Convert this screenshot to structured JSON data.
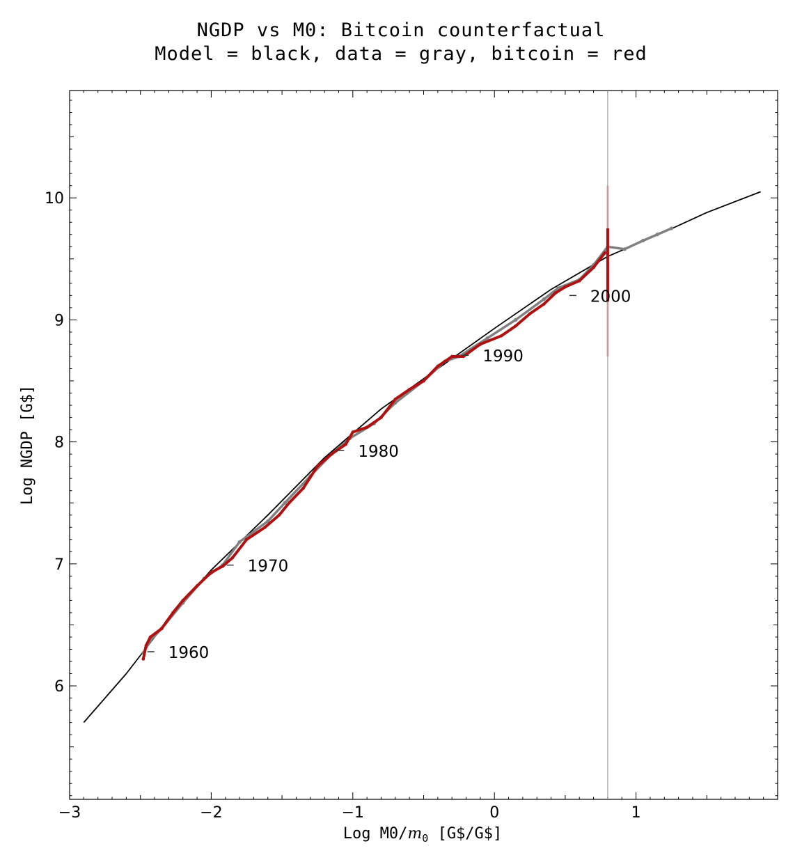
{
  "chart_data": {
    "type": "scatter",
    "title": "NGDP vs M0: Bitcoin counterfactual",
    "subtitle": "Model = black, data = gray, bitcoin = red",
    "xlabel_main": "Log M0/",
    "xlabel_m": "m",
    "xlabel_sub": "0",
    "xlabel_units": " [G$/G$]",
    "ylabel": "Log NGDP [G$]",
    "xlim": [
      -3,
      2
    ],
    "ylim": [
      5.07,
      10.88
    ],
    "x_ticks": [
      -3,
      -2,
      -1,
      0,
      1
    ],
    "x_tick_labels": [
      "−3",
      "−2",
      "−1",
      "0",
      "1"
    ],
    "y_ticks": [
      6,
      7,
      8,
      9,
      10
    ],
    "y_tick_labels": [
      "6",
      "7",
      "8",
      "9",
      "10"
    ],
    "grid": false,
    "vertical_line_x": 0.8,
    "model_curve": {
      "color": "#000000",
      "points": [
        [
          -2.9,
          5.7
        ],
        [
          -2.6,
          6.1
        ],
        [
          -2.3,
          6.55
        ],
        [
          -2.0,
          6.95
        ],
        [
          -1.6,
          7.4
        ],
        [
          -1.2,
          7.87
        ],
        [
          -0.8,
          8.27
        ],
        [
          -0.4,
          8.6
        ],
        [
          0.0,
          8.93
        ],
        [
          0.4,
          9.25
        ],
        [
          0.8,
          9.52
        ],
        [
          1.2,
          9.72
        ],
        [
          1.5,
          9.88
        ],
        [
          1.88,
          10.05
        ]
      ]
    },
    "data_gray": {
      "color": "#808080",
      "points": [
        [
          -2.48,
          6.27
        ],
        [
          -2.43,
          6.37
        ],
        [
          -2.35,
          6.47
        ],
        [
          -2.2,
          6.68
        ],
        [
          -2.05,
          6.88
        ],
        [
          -1.92,
          6.99
        ],
        [
          -1.8,
          7.18
        ],
        [
          -1.6,
          7.35
        ],
        [
          -1.48,
          7.5
        ],
        [
          -1.3,
          7.72
        ],
        [
          -1.15,
          7.9
        ],
        [
          -1.02,
          8.03
        ],
        [
          -0.85,
          8.15
        ],
        [
          -0.7,
          8.32
        ],
        [
          -0.5,
          8.5
        ],
        [
          -0.35,
          8.66
        ],
        [
          -0.25,
          8.7
        ],
        [
          -0.05,
          8.85
        ],
        [
          0.15,
          9.0
        ],
        [
          0.35,
          9.17
        ],
        [
          0.45,
          9.26
        ],
        [
          0.6,
          9.33
        ],
        [
          0.7,
          9.45
        ],
        [
          0.8,
          9.6
        ],
        [
          0.92,
          9.58
        ],
        [
          1.05,
          9.65
        ],
        [
          1.15,
          9.7
        ],
        [
          1.25,
          9.75
        ]
      ]
    },
    "bitcoin_red": {
      "color": "#b01010",
      "points": [
        [
          -2.48,
          6.22
        ],
        [
          -2.46,
          6.33
        ],
        [
          -2.43,
          6.4
        ],
        [
          -2.35,
          6.47
        ],
        [
          -2.27,
          6.6
        ],
        [
          -2.2,
          6.7
        ],
        [
          -2.1,
          6.82
        ],
        [
          -2.0,
          6.93
        ],
        [
          -1.92,
          6.98
        ],
        [
          -1.85,
          7.05
        ],
        [
          -1.75,
          7.2
        ],
        [
          -1.62,
          7.3
        ],
        [
          -1.52,
          7.4
        ],
        [
          -1.45,
          7.5
        ],
        [
          -1.35,
          7.62
        ],
        [
          -1.25,
          7.8
        ],
        [
          -1.15,
          7.9
        ],
        [
          -1.05,
          7.98
        ],
        [
          -1.0,
          8.08
        ],
        [
          -0.9,
          8.12
        ],
        [
          -0.8,
          8.2
        ],
        [
          -0.7,
          8.35
        ],
        [
          -0.6,
          8.43
        ],
        [
          -0.5,
          8.5
        ],
        [
          -0.4,
          8.62
        ],
        [
          -0.3,
          8.7
        ],
        [
          -0.22,
          8.7
        ],
        [
          -0.1,
          8.8
        ],
        [
          0.05,
          8.87
        ],
        [
          0.15,
          8.95
        ],
        [
          0.25,
          9.05
        ],
        [
          0.35,
          9.13
        ],
        [
          0.43,
          9.22
        ],
        [
          0.5,
          9.27
        ],
        [
          0.6,
          9.32
        ],
        [
          0.7,
          9.43
        ],
        [
          0.78,
          9.55
        ]
      ],
      "vertical_spread": {
        "x": 0.8,
        "y_min": 9.15,
        "y_max": 9.75,
        "faint_min": 8.7,
        "faint_max": 10.1
      }
    },
    "annotations": [
      {
        "text": "1960",
        "x": -2.48,
        "y": 6.28
      },
      {
        "text": "1970",
        "x": -1.92,
        "y": 6.99
      },
      {
        "text": "1980",
        "x": -1.14,
        "y": 7.93
      },
      {
        "text": "1990",
        "x": -0.26,
        "y": 8.71
      },
      {
        "text": "2000",
        "x": 0.5,
        "y": 9.2
      }
    ]
  }
}
